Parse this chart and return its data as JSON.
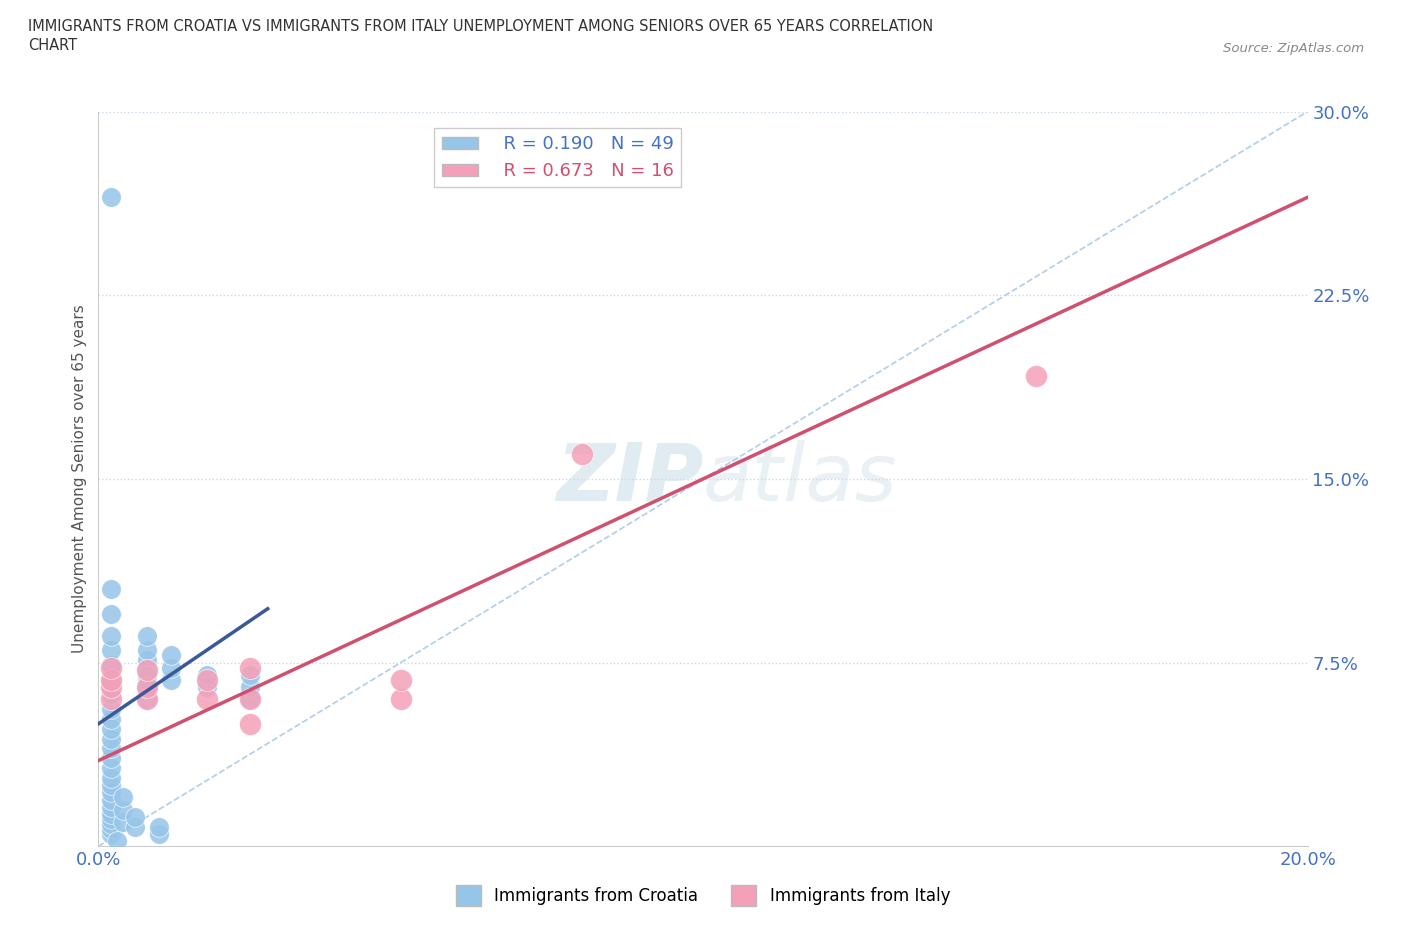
{
  "title": "IMMIGRANTS FROM CROATIA VS IMMIGRANTS FROM ITALY UNEMPLOYMENT AMONG SENIORS OVER 65 YEARS CORRELATION\nCHART",
  "source": "Source: ZipAtlas.com",
  "ylabel": "Unemployment Among Seniors over 65 years",
  "xlim": [
    0.0,
    0.2
  ],
  "ylim": [
    0.0,
    0.3
  ],
  "yticks": [
    0.075,
    0.15,
    0.225,
    0.3
  ],
  "ytick_labels": [
    "7.5%",
    "15.0%",
    "22.5%",
    "30.0%"
  ],
  "xtick_labels": [
    "0.0%",
    "",
    "",
    "",
    "20.0%"
  ],
  "croatia_color": "#95C5E8",
  "italy_color": "#F4A0B8",
  "trendline_croatia_color": "#3B5998",
  "trendline_italy_color": "#D05070",
  "diagonal_color": "#A8C8E8",
  "R_croatia": 0.19,
  "N_croatia": 49,
  "R_italy": 0.673,
  "N_italy": 16,
  "watermark_zip": "ZIP",
  "watermark_atlas": "atlas",
  "croatia_x": [
    0.002,
    0.002,
    0.002,
    0.002,
    0.002,
    0.002,
    0.002,
    0.002,
    0.002,
    0.002,
    0.002,
    0.002,
    0.002,
    0.002,
    0.002,
    0.002,
    0.002,
    0.002,
    0.002,
    0.002,
    0.002,
    0.002,
    0.002,
    0.002,
    0.002,
    0.008,
    0.008,
    0.008,
    0.008,
    0.008,
    0.008,
    0.008,
    0.008,
    0.012,
    0.012,
    0.012,
    0.018,
    0.018,
    0.025,
    0.025,
    0.025,
    0.004,
    0.004,
    0.004,
    0.006,
    0.006,
    0.01,
    0.01,
    0.003
  ],
  "croatia_y": [
    0.005,
    0.007,
    0.009,
    0.011,
    0.013,
    0.016,
    0.019,
    0.022,
    0.025,
    0.028,
    0.032,
    0.036,
    0.04,
    0.044,
    0.048,
    0.052,
    0.056,
    0.062,
    0.068,
    0.074,
    0.08,
    0.086,
    0.095,
    0.105,
    0.265,
    0.06,
    0.068,
    0.072,
    0.076,
    0.08,
    0.086,
    0.07,
    0.065,
    0.068,
    0.073,
    0.078,
    0.065,
    0.07,
    0.06,
    0.065,
    0.07,
    0.01,
    0.015,
    0.02,
    0.008,
    0.012,
    0.005,
    0.008,
    0.002
  ],
  "italy_x": [
    0.002,
    0.002,
    0.002,
    0.002,
    0.008,
    0.008,
    0.008,
    0.018,
    0.018,
    0.025,
    0.025,
    0.025,
    0.05,
    0.05,
    0.08,
    0.155
  ],
  "italy_y": [
    0.06,
    0.065,
    0.068,
    0.073,
    0.06,
    0.065,
    0.072,
    0.06,
    0.068,
    0.05,
    0.06,
    0.073,
    0.06,
    0.068,
    0.16,
    0.192
  ],
  "croatia_trendline_x": [
    0.0,
    0.028
  ],
  "croatia_trendline_y": [
    0.05,
    0.097
  ],
  "italy_trendline_x": [
    0.0,
    0.2
  ],
  "italy_trendline_y": [
    0.035,
    0.265
  ]
}
